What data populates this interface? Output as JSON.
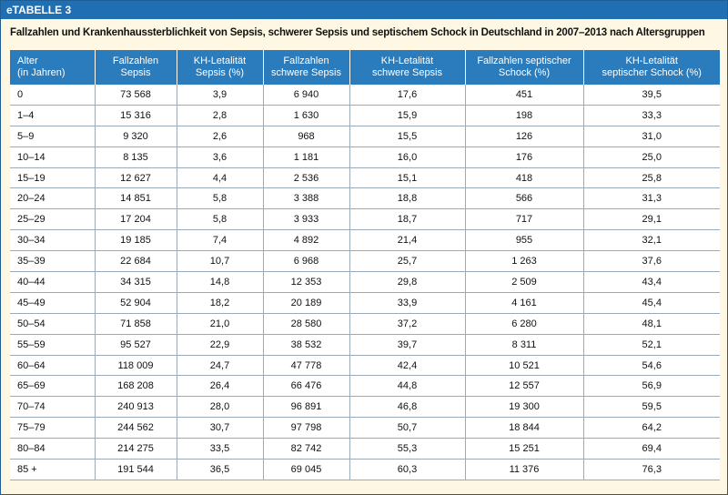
{
  "header": {
    "label": "eTABELLE 3",
    "title": "Fallzahlen und Krankenhaussterblichkeit von Sepsis, schwerer Sepsis und septischem Schock in Deutschland in 2007–2013 nach Altersgruppen"
  },
  "table": {
    "columns": [
      [
        "Alter",
        "(in Jahren)"
      ],
      [
        "Fallzahlen",
        "Sepsis"
      ],
      [
        "KH-Letalität",
        "Sepsis (%)"
      ],
      [
        "Fallzahlen",
        "schwere Sepsis"
      ],
      [
        "KH-Letalität",
        "schwere Sepsis"
      ],
      [
        "Fallzahlen septischer",
        "Schock (%)"
      ],
      [
        "KH-Letalität",
        "septischer Schock (%)"
      ]
    ],
    "rows": [
      [
        "0",
        "73 568",
        "3,9",
        "6 940",
        "17,6",
        "451",
        "39,5"
      ],
      [
        "1–4",
        "15 316",
        "2,8",
        "1 630",
        "15,9",
        "198",
        "33,3"
      ],
      [
        "5–9",
        "9 320",
        "2,6",
        "968",
        "15,5",
        "126",
        "31,0"
      ],
      [
        "10–14",
        "8 135",
        "3,6",
        "1 181",
        "16,0",
        "176",
        "25,0"
      ],
      [
        "15–19",
        "12 627",
        "4,4",
        "2 536",
        "15,1",
        "418",
        "25,8"
      ],
      [
        "20–24",
        "14 851",
        "5,8",
        "3 388",
        "18,8",
        "566",
        "31,3"
      ],
      [
        "25–29",
        "17 204",
        "5,8",
        "3 933",
        "18,7",
        "717",
        "29,1"
      ],
      [
        "30–34",
        "19 185",
        "7,4",
        "4 892",
        "21,4",
        "955",
        "32,1"
      ],
      [
        "35–39",
        "22 684",
        "10,7",
        "6 968",
        "25,7",
        "1 263",
        "37,6"
      ],
      [
        "40–44",
        "34 315",
        "14,8",
        "12 353",
        "29,8",
        "2 509",
        "43,4"
      ],
      [
        "45–49",
        "52 904",
        "18,2",
        "20 189",
        "33,9",
        "4 161",
        "45,4"
      ],
      [
        "50–54",
        "71 858",
        "21,0",
        "28 580",
        "37,2",
        "6 280",
        "48,1"
      ],
      [
        "55–59",
        "95 527",
        "22,9",
        "38 532",
        "39,7",
        "8 311",
        "52,1"
      ],
      [
        "60–64",
        "118 009",
        "24,7",
        "47 778",
        "42,4",
        "10 521",
        "54,6"
      ],
      [
        "65–69",
        "168 208",
        "26,4",
        "66 476",
        "44,8",
        "12 557",
        "56,9"
      ],
      [
        "70–74",
        "240 913",
        "28,0",
        "96 891",
        "46,8",
        "19 300",
        "59,5"
      ],
      [
        "75–79",
        "244 562",
        "30,7",
        "97 798",
        "50,7",
        "18 844",
        "64,2"
      ],
      [
        "80–84",
        "214 275",
        "33,5",
        "82 742",
        "55,3",
        "15 251",
        "69,4"
      ],
      [
        "85 +",
        "191 544",
        "36,5",
        "69 045",
        "60,3",
        "11 376",
        "76,3"
      ]
    ]
  }
}
